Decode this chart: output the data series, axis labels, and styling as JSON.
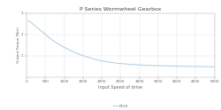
{
  "title": "P Series Wormwheel Gearbox",
  "xlabel": "Input Speed of drive",
  "ylabel": "Output Torque (Nm)",
  "x_min": 0,
  "x_max": 5000,
  "y_min": 0,
  "y_max": 3,
  "y_ticks": [
    1,
    2,
    3
  ],
  "x_ticks": [
    0,
    500,
    1000,
    1500,
    2000,
    2500,
    3000,
    3500,
    4000,
    4500,
    5000
  ],
  "line_color": "#aaccdd",
  "background_color": "#ffffff",
  "grid_color": "#e0e0e0",
  "legend_label": "P100",
  "curve_x": [
    50,
    100,
    200,
    300,
    400,
    500,
    600,
    700,
    800,
    900,
    1000,
    1200,
    1400,
    1600,
    1800,
    2000,
    2200,
    2400,
    2600,
    2800,
    3000,
    3200,
    3400,
    3600,
    3800,
    4000,
    4200,
    4400,
    4600,
    4800,
    5000
  ],
  "curve_y": [
    2.65,
    2.6,
    2.45,
    2.3,
    2.15,
    2.0,
    1.85,
    1.72,
    1.6,
    1.5,
    1.4,
    1.22,
    1.07,
    0.95,
    0.84,
    0.76,
    0.7,
    0.65,
    0.62,
    0.59,
    0.57,
    0.55,
    0.54,
    0.53,
    0.52,
    0.51,
    0.5,
    0.5,
    0.49,
    0.49,
    0.48
  ]
}
